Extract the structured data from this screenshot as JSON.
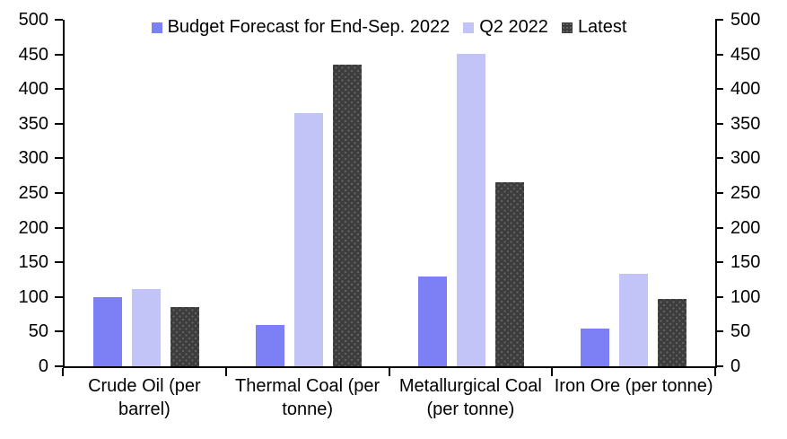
{
  "chart_data": {
    "type": "bar",
    "title": "",
    "categories": [
      "Crude Oil (per barrel)",
      "Thermal Coal (per tonne)",
      "Metallurgical Coal (per tonne)",
      "Iron Ore (per tonne)"
    ],
    "series": [
      {
        "name": "Budget Forecast for End-Sep. 2022",
        "color": "#7d80f5",
        "pattern": "solid",
        "values": [
          100,
          60,
          130,
          55
        ]
      },
      {
        "name": "Q2 2022",
        "color": "#c2c3f7",
        "pattern": "solid",
        "values": [
          111,
          365,
          451,
          133
        ]
      },
      {
        "name": "Latest",
        "color": "#3d3d3d",
        "pattern": "dots",
        "values": [
          85,
          435,
          265,
          97
        ]
      }
    ],
    "ylim": [
      0,
      500
    ],
    "ytick_step": 50,
    "yticks": [
      0,
      50,
      100,
      150,
      200,
      250,
      300,
      350,
      400,
      450,
      500
    ],
    "dual_axis": true,
    "grid": false,
    "legend_position": "top-center",
    "axis_color": "#000000",
    "background_color": "#ffffff"
  }
}
